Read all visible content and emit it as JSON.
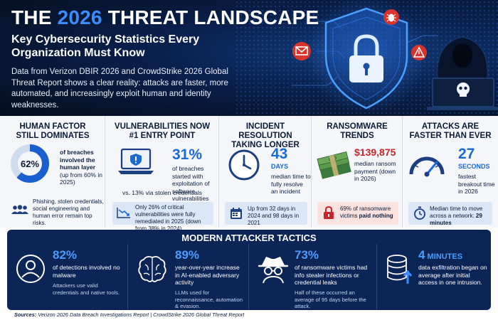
{
  "header": {
    "title_pre": "THE ",
    "title_year": "2026",
    "title_post": " THREAT LANDSCAPE",
    "subtitle": "Key Cybersecurity Statistics Every Organization Must Know",
    "intro": "Data from Verizon DBIR 2026 and CrowdStrike 2026 Global Threat Report shows a clear reality: attacks are faster, more automated, and increasingly exploit human and identity weaknesses."
  },
  "colors": {
    "navy": "#0a2556",
    "accent": "#1a6ad6",
    "alert_red": "#d9342b",
    "light_panel": "#dbe7f7"
  },
  "stats": {
    "human": {
      "heading": "HUMAN FACTOR STILL DOMINATES",
      "value": 62,
      "percent_label": "62%",
      "desc_bold": "of breaches involved the human layer",
      "desc_sub": "(up from 60% in 2025)",
      "note": "Phishing, stolen credentials, social engineering and human error remain top risks.",
      "icon": "users-icon"
    },
    "vuln": {
      "heading": "VULNERABILITIES NOW #1 ENTRY POINT",
      "value_label": "31%",
      "desc": "of breaches started with exploitation of software vulnerabilities",
      "compare": "vs. 13% via stolen credentials",
      "note": "Only 26% of critical vulnerabilities were fully remediated in 2025 (down from 38% in 2024)",
      "icon": "laptop-shield-icon"
    },
    "incident": {
      "heading": "INCIDENT RESOLUTION TAKING LONGER",
      "value_label": "43",
      "unit": "DAYS",
      "desc": "median time to fully resolve an incident",
      "note": "Up from 32 days in 2024 and 98 days in 2021",
      "icon": "clock-icon"
    },
    "ransom": {
      "heading": "RANSOMWARE TRENDS",
      "value_label": "$139,875",
      "desc": "median ransom payment (down in 2026)",
      "note_pre": "69% of ransomware victims ",
      "note_bold": "paid nothing",
      "icon": "money-stack-icon"
    },
    "speed": {
      "heading": "ATTACKS ARE FASTER THAN EVER",
      "value_label": "27",
      "unit": "SECONDS",
      "desc": "fastest breakout time in 2026",
      "note_pre": "Median time to move across a network: ",
      "note_bold": "29 minutes",
      "icon": "speedometer-icon"
    }
  },
  "tactics": {
    "heading": "MODERN ATTACKER TACTICS",
    "items": [
      {
        "value": "82%",
        "desc": "of detections involved no malware",
        "sub": "Attackers use valid credentials and native tools.",
        "icon": "user-icon"
      },
      {
        "value": "89%",
        "desc": "year-over-year increase in AI-enabled adversary activity",
        "sub": "LLMs used for reconnaissance, automation & evasion.",
        "icon": "brain-icon"
      },
      {
        "value": "73%",
        "desc": "of ransomware victims had info stealer infections or credential leaks",
        "sub": "Half of these occurred an average of 95 days before the attack.",
        "icon": "spy-icon"
      },
      {
        "value_num": "4",
        "value_unit": " MINUTES",
        "desc": "data exfiltration began on average after initial access in one intrusion.",
        "sub": "",
        "icon": "database-upload-icon"
      }
    ]
  },
  "sources": {
    "label": "Sources:",
    "text": " Verizon 2026 Data Breach Investigations Report | CrowdStrike 2026 Global Threat Report"
  }
}
